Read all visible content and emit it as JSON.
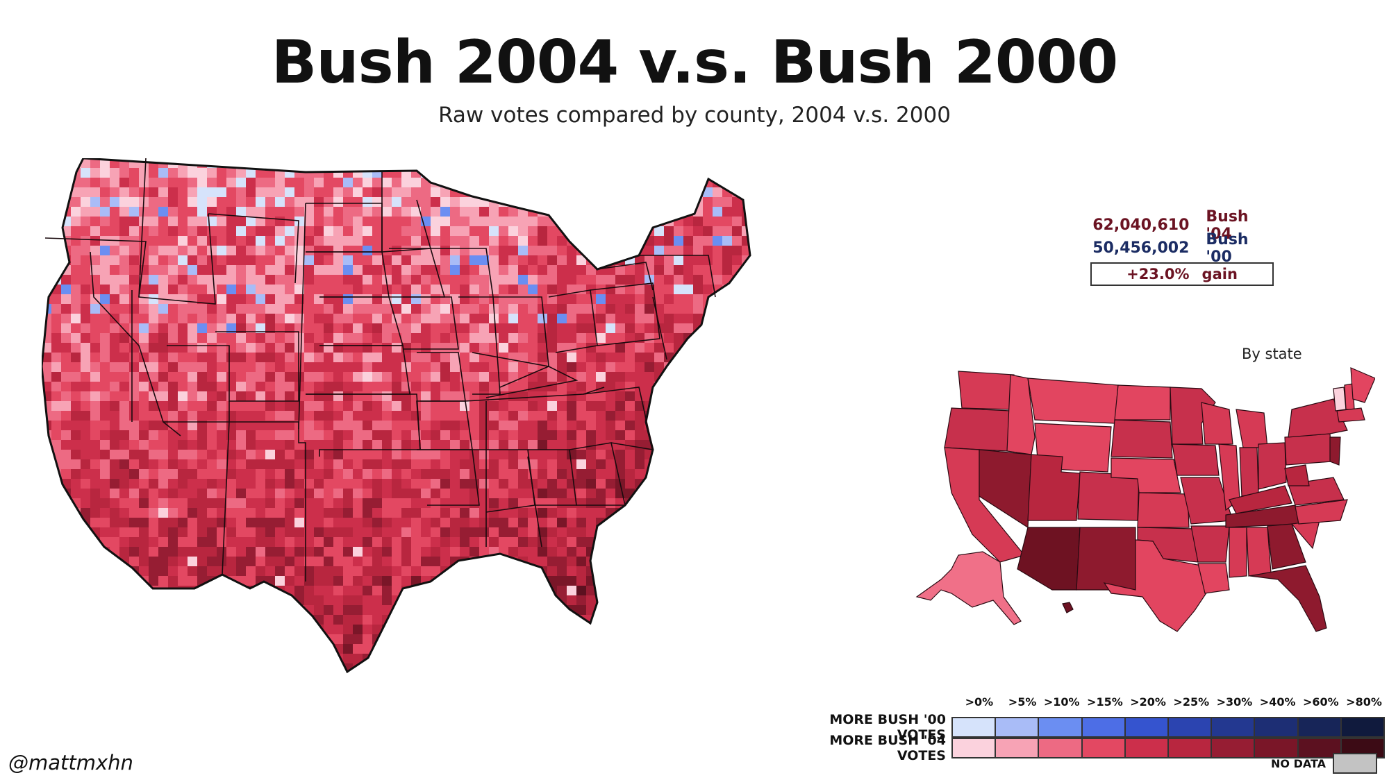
{
  "title": "Bush 2004 v.s. Bush 2000",
  "subtitle": "Raw votes compared by county, 2004 v.s. 2000",
  "stats": {
    "votes_2004": "62,040,610",
    "label_2004": "Bush '04",
    "votes_2000": "50,456,002",
    "label_2000": "Bush '00",
    "gain_value": "+23.0%",
    "gain_label": "gain"
  },
  "inset_label": "By state",
  "legend": {
    "thresholds": [
      ">0%",
      ">5%",
      ">10%",
      ">15%",
      ">20%",
      ">25%",
      ">30%",
      ">40%",
      ">60%",
      ">80%"
    ],
    "row_2000_label": "MORE BUSH '00 VOTES",
    "row_2004_label": "MORE BUSH '04 VOTES",
    "colors_2000": [
      "#d6e3fb",
      "#a9bcf7",
      "#6b8ef2",
      "#4d6ee6",
      "#3554cf",
      "#2b44b0",
      "#233890",
      "#1d2e74",
      "#172558",
      "#101a3d"
    ],
    "colors_2004": [
      "#fbd2dd",
      "#f7a3b5",
      "#ed6a83",
      "#e34862",
      "#cc2f4b",
      "#b8263f",
      "#961d33",
      "#7a1628",
      "#5c1120",
      "#3c0b15"
    ],
    "no_data_label": "NO DATA",
    "no_data_color": "#c3c3c3"
  },
  "credit": "@mattmxhn"
}
